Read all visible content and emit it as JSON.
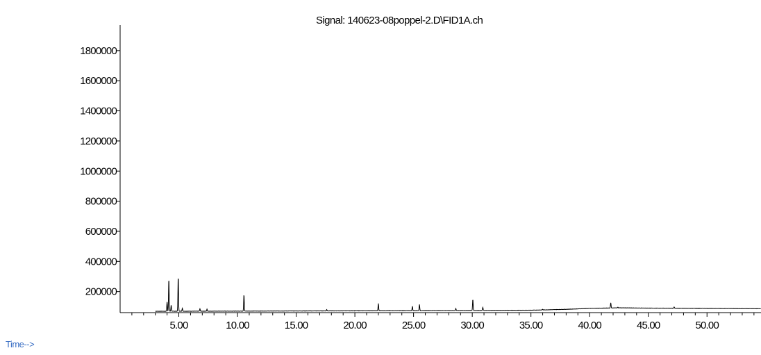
{
  "chart_data": {
    "type": "line",
    "title": "Signal: 140623-08poppel-2.D\\FID1A.ch",
    "xlabel": "Time-->",
    "ylabel": "",
    "xlim": [
      0,
      54.6
    ],
    "ylim": [
      60000,
      1970000
    ],
    "x_ticks": [
      5,
      10,
      15,
      20,
      25,
      30,
      35,
      40,
      45,
      50
    ],
    "x_tick_labels": [
      "5.00",
      "10.00",
      "15.00",
      "20.00",
      "25.00",
      "30.00",
      "35.00",
      "40.00",
      "45.00",
      "50.00"
    ],
    "y_ticks": [
      200000,
      400000,
      600000,
      800000,
      1000000,
      1200000,
      1400000,
      1600000,
      1800000
    ],
    "y_tick_labels": [
      "200000",
      "400000",
      "600000",
      "800000",
      "1000000",
      "1200000",
      "1400000",
      "1600000",
      "1800000"
    ],
    "grid": false,
    "baseline": [
      [
        0.0,
        68000
      ],
      [
        3.0,
        69000
      ],
      [
        10.0,
        70000
      ],
      [
        20.0,
        72000
      ],
      [
        30.0,
        74000
      ],
      [
        35.0,
        76000
      ],
      [
        38.0,
        82000
      ],
      [
        40.0,
        88000
      ],
      [
        42.5,
        92000
      ],
      [
        45.0,
        90000
      ],
      [
        50.0,
        88000
      ],
      [
        54.6,
        86000
      ]
    ],
    "peaks": [
      {
        "x": 4.0,
        "y": 130000
      },
      {
        "x": 4.15,
        "y": 285000
      },
      {
        "x": 4.35,
        "y": 110000
      },
      {
        "x": 4.95,
        "y": 300000
      },
      {
        "x": 5.3,
        "y": 90000
      },
      {
        "x": 6.8,
        "y": 85000
      },
      {
        "x": 7.4,
        "y": 83000
      },
      {
        "x": 10.55,
        "y": 180000
      },
      {
        "x": 17.6,
        "y": 80000
      },
      {
        "x": 22.0,
        "y": 120000
      },
      {
        "x": 24.9,
        "y": 102000
      },
      {
        "x": 25.5,
        "y": 115000
      },
      {
        "x": 28.6,
        "y": 88000
      },
      {
        "x": 30.05,
        "y": 148000
      },
      {
        "x": 30.9,
        "y": 95000
      },
      {
        "x": 36.0,
        "y": 82000
      },
      {
        "x": 41.8,
        "y": 125000
      },
      {
        "x": 42.4,
        "y": 97000
      },
      {
        "x": 47.2,
        "y": 98000
      }
    ]
  }
}
